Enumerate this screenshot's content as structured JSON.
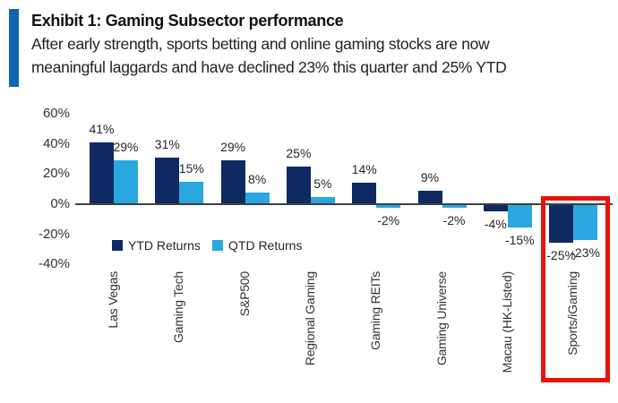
{
  "colors": {
    "accent_blue": "#1263b2",
    "ytd_navy": "#0e2a62",
    "qtd_lightblue": "#29a8e0",
    "highlight_red": "#e8140c",
    "axis_gray": "#3f3f3f"
  },
  "header": {
    "title": "Exhibit 1: Gaming Subsector performance",
    "subtitle_line1": "After early strength, sports betting and online gaming stocks are now",
    "subtitle_line2": "meaningful laggards and have declined 23% this quarter and 25% YTD"
  },
  "chart_data": {
    "type": "bar",
    "categories": [
      "Las Vegas",
      "Gaming Tech",
      "S&P500",
      "Regional Gaming",
      "Gaming REITs",
      "Gaming Universe",
      "Macau (HK-Listed)",
      "Sports/iGaming"
    ],
    "series": [
      {
        "name": "YTD Returns",
        "color": "#0e2a62",
        "values": [
          41,
          31,
          29,
          25,
          14,
          9,
          -4,
          -25
        ]
      },
      {
        "name": "QTD Returns",
        "color": "#29a8e0",
        "values": [
          29,
          15,
          8,
          5,
          -2,
          -2,
          -15,
          -23
        ]
      }
    ],
    "value_label_format": "{v}%",
    "yticks": [
      60,
      40,
      20,
      0,
      -20,
      -40
    ],
    "ytick_format": "{v}%",
    "ylim": [
      -48,
      66
    ],
    "grid": false,
    "legend_position": "inside-bottom-left",
    "highlight": {
      "category": "Sports/iGaming",
      "color": "#e8140c"
    }
  }
}
